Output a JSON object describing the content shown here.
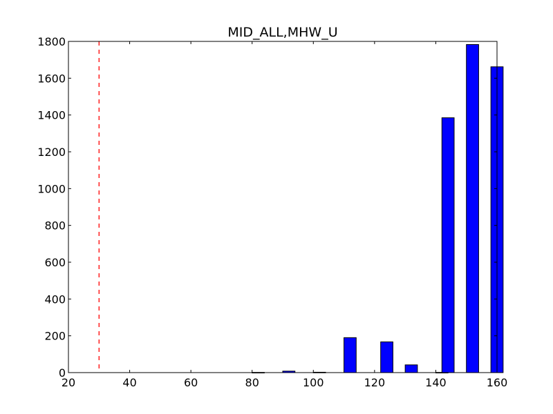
{
  "chart_data": {
    "type": "bar",
    "title": "MID_ALL,MHW_U",
    "xlabel": "",
    "ylabel": "",
    "xlim": [
      20,
      160
    ],
    "ylim": [
      0,
      1800
    ],
    "xticks": [
      20,
      40,
      60,
      80,
      100,
      120,
      140,
      160
    ],
    "yticks": [
      0,
      200,
      400,
      600,
      800,
      1000,
      1200,
      1400,
      1600,
      1800
    ],
    "bar_width": 4,
    "bars": [
      {
        "x": 80,
        "value": 1
      },
      {
        "x": 90,
        "value": 8
      },
      {
        "x": 100,
        "value": 2
      },
      {
        "x": 110,
        "value": 190
      },
      {
        "x": 122,
        "value": 167
      },
      {
        "x": 130,
        "value": 42
      },
      {
        "x": 140,
        "value": 1
      },
      {
        "x": 142,
        "value": 1385
      },
      {
        "x": 150,
        "value": 1783
      },
      {
        "x": 158,
        "value": 1662
      }
    ],
    "reference_line": {
      "x": 30,
      "style": "dashed",
      "color": "#ff0000"
    },
    "bar_color": "#0000ff",
    "grid": false
  }
}
